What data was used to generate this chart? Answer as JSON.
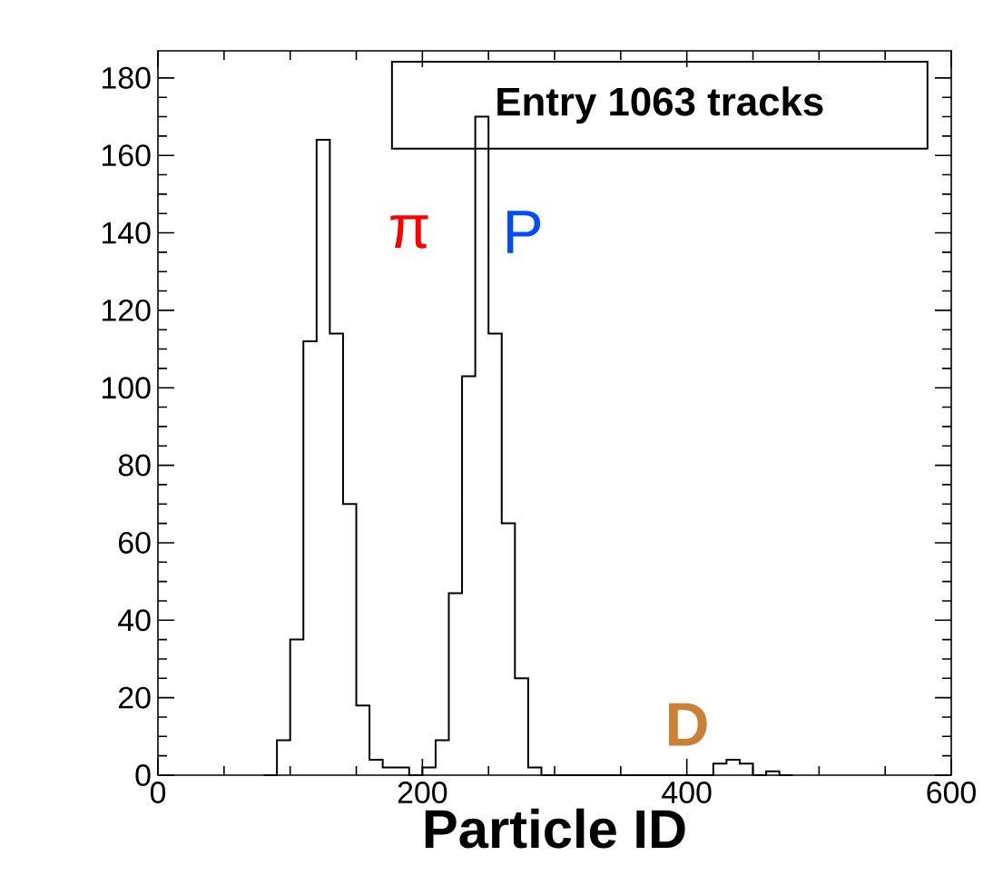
{
  "chart_data": {
    "type": "histogram",
    "xlabel": "Particle ID",
    "bins": [
      80,
      90,
      100,
      110,
      120,
      130,
      140,
      150,
      160,
      170,
      180,
      190,
      200,
      210,
      220,
      230,
      240,
      250,
      260,
      270,
      280,
      290,
      300,
      310,
      320,
      330,
      340,
      350,
      360,
      370,
      380,
      390,
      400,
      410,
      420,
      430,
      440,
      450,
      460,
      470,
      480
    ],
    "values": [
      0,
      9,
      35,
      112,
      164,
      114,
      70,
      18,
      4,
      2,
      2,
      0,
      2,
      9,
      47,
      103,
      170,
      114,
      65,
      25,
      2,
      0,
      0,
      0,
      0,
      0,
      0,
      0,
      0,
      0,
      0,
      0,
      0,
      0,
      3,
      4,
      3,
      0,
      1,
      0
    ],
    "color": "#000000",
    "xlim": [
      0,
      600
    ],
    "ylim": [
      0,
      187
    ],
    "xticks": [
      0,
      200,
      400,
      600
    ],
    "yticks": [
      0,
      20,
      40,
      60,
      80,
      100,
      120,
      140,
      160,
      180
    ],
    "annotations": [
      "Entry 1063 tracks",
      "π",
      "P",
      "D"
    ],
    "grid": false
  }
}
